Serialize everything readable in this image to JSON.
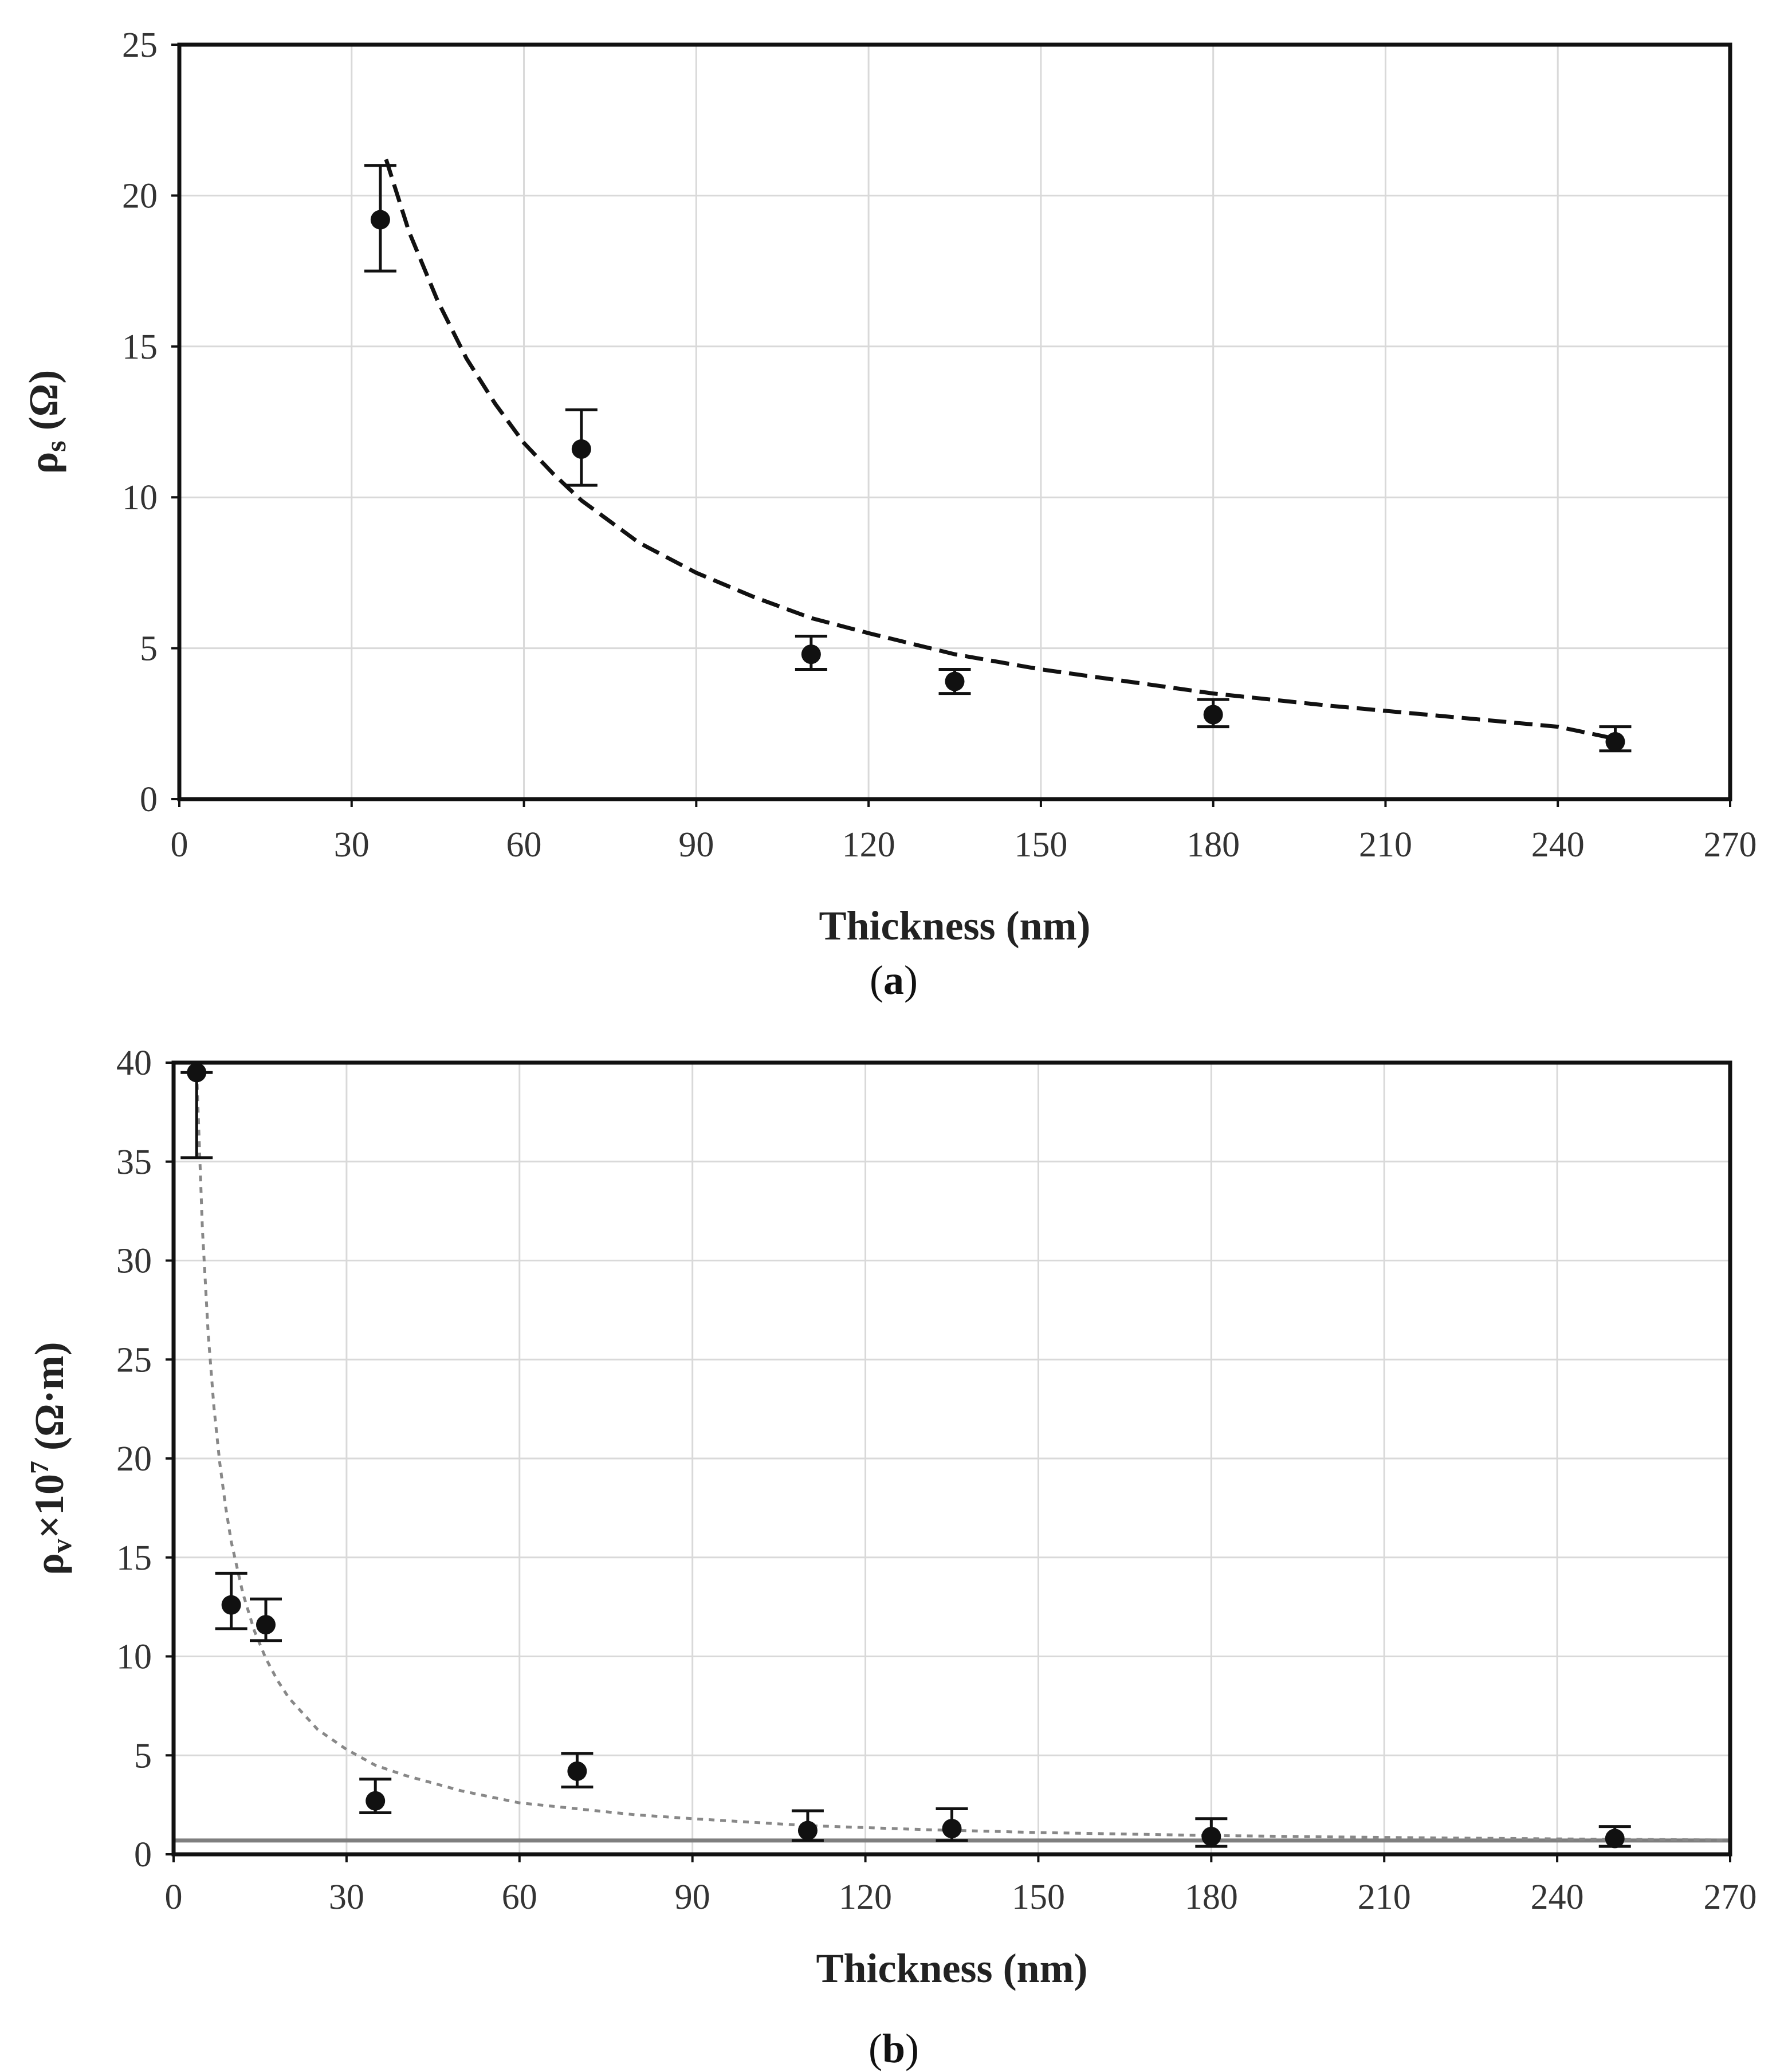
{
  "chart_data": [
    {
      "type": "scatter",
      "panel": "a",
      "caption_open": "(",
      "caption_letter": "a",
      "caption_close": ")",
      "xlabel": "Thickness (nm)",
      "ylabel_main": "ρ",
      "ylabel_sub": "s",
      "ylabel_rest": " (Ω)",
      "xlim": [
        0,
        270
      ],
      "ylim": [
        0,
        25
      ],
      "xticks": [
        0,
        30,
        60,
        90,
        120,
        150,
        180,
        210,
        240,
        270
      ],
      "yticks": [
        0,
        5,
        10,
        15,
        20,
        25
      ],
      "grid": true,
      "points": [
        {
          "x": 35,
          "y": 19.2,
          "err_low": 17.5,
          "err_high": 21.0
        },
        {
          "x": 70,
          "y": 11.6,
          "err_low": 10.4,
          "err_high": 12.9
        },
        {
          "x": 110,
          "y": 4.8,
          "err_low": 4.3,
          "err_high": 5.4
        },
        {
          "x": 135,
          "y": 3.9,
          "err_low": 3.5,
          "err_high": 4.3
        },
        {
          "x": 180,
          "y": 2.8,
          "err_low": 2.4,
          "err_high": 3.3
        },
        {
          "x": 250,
          "y": 1.9,
          "err_low": 1.6,
          "err_high": 2.4
        }
      ],
      "fit": {
        "style": "dashed",
        "x": [
          36,
          40,
          45,
          50,
          55,
          60,
          65,
          70,
          80,
          90,
          100,
          110,
          120,
          135,
          150,
          165,
          180,
          200,
          220,
          240,
          250
        ],
        "y": [
          21.2,
          18.8,
          16.5,
          14.6,
          13.1,
          11.8,
          10.8,
          9.9,
          8.5,
          7.5,
          6.7,
          6.0,
          5.5,
          4.8,
          4.3,
          3.9,
          3.5,
          3.1,
          2.75,
          2.4,
          2.0
        ]
      }
    },
    {
      "type": "scatter",
      "panel": "b",
      "caption_open": "(",
      "caption_letter": "b",
      "caption_close": ")",
      "xlabel": "Thickness (nm)",
      "ylabel_main": "ρ",
      "ylabel_sub": "v",
      "ylabel_mid": "×10",
      "ylabel_sup": "7",
      "ylabel_rest": " (Ω·m)",
      "xlim": [
        0,
        270
      ],
      "ylim": [
        0,
        40
      ],
      "xticks": [
        0,
        30,
        60,
        90,
        120,
        150,
        180,
        210,
        240,
        270
      ],
      "yticks": [
        0,
        5,
        10,
        15,
        20,
        25,
        30,
        35,
        40
      ],
      "grid": true,
      "points": [
        {
          "x": 4,
          "y": 39.5,
          "err_low": 35.2,
          "err_high": 39.5
        },
        {
          "x": 10,
          "y": 12.6,
          "err_low": 11.4,
          "err_high": 14.2
        },
        {
          "x": 16,
          "y": 11.6,
          "err_low": 10.8,
          "err_high": 12.9
        },
        {
          "x": 35,
          "y": 2.7,
          "err_low": 2.1,
          "err_high": 3.8
        },
        {
          "x": 70,
          "y": 4.2,
          "err_low": 3.4,
          "err_high": 5.1
        },
        {
          "x": 110,
          "y": 1.2,
          "err_low": 0.7,
          "err_high": 2.2
        },
        {
          "x": 135,
          "y": 1.3,
          "err_low": 0.7,
          "err_high": 2.3
        },
        {
          "x": 180,
          "y": 0.9,
          "err_low": 0.4,
          "err_high": 1.8
        },
        {
          "x": 250,
          "y": 0.8,
          "err_low": 0.4,
          "err_high": 1.4
        }
      ],
      "fit": {
        "style": "dotted",
        "x": [
          4,
          5,
          6,
          7,
          8,
          9,
          10,
          12,
          14,
          16,
          18,
          20,
          25,
          30,
          35,
          40,
          50,
          60,
          70,
          80,
          90,
          110,
          130,
          150,
          180,
          210,
          240,
          270
        ],
        "y": [
          39.5,
          31.6,
          26.3,
          22.6,
          19.8,
          17.6,
          15.8,
          13.2,
          11.3,
          9.9,
          8.8,
          7.9,
          6.3,
          5.3,
          4.5,
          4.0,
          3.2,
          2.6,
          2.3,
          2.0,
          1.8,
          1.45,
          1.25,
          1.1,
          0.95,
          0.85,
          0.78,
          0.72
        ]
      },
      "baseline": {
        "y": 0.7,
        "style": "solid"
      }
    }
  ]
}
